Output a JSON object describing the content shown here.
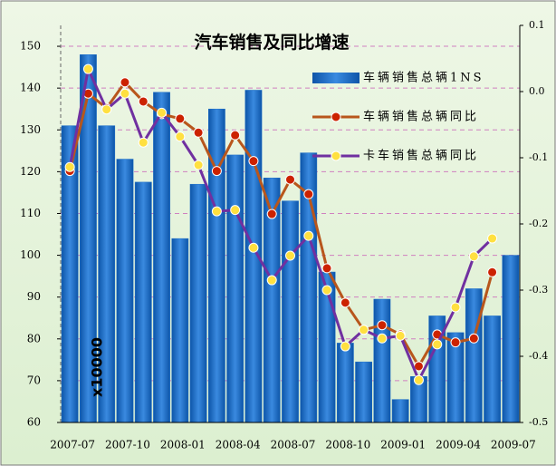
{
  "chart_data": {
    "type": "bar_line",
    "title": "汽车销售及同比增速",
    "annotation": "x10000",
    "categories": [
      "2007-07",
      null,
      null,
      "2007-10",
      null,
      null,
      "2008-01",
      null,
      null,
      "2008-04",
      null,
      null,
      "2008-07",
      null,
      null,
      "2008-10",
      null,
      null,
      "2009-01",
      null,
      null,
      "2009-04",
      null,
      null,
      "2009-07"
    ],
    "series": [
      {
        "name": "车辆销售总辆1NS",
        "color": "#1a6cc8",
        "kind": "bar",
        "values": [
          131,
          148,
          131,
          123,
          117.5,
          139,
          104,
          117,
          135,
          124,
          139.5,
          118.5,
          113,
          124.5,
          96,
          79,
          74.5,
          89.5,
          65.5,
          71,
          85.5,
          81.5,
          92,
          85.5,
          100
        ]
      },
      {
        "name": "车辆销售总辆同比",
        "color": "#b8561c",
        "marker": "#cc2200",
        "kind": "line",
        "axis": "y2",
        "values": [
          -0.12,
          -0.003,
          -0.025,
          0.014,
          -0.015,
          -0.034,
          -0.041,
          -0.062,
          -0.12,
          -0.066,
          -0.105,
          -0.185,
          -0.133,
          -0.155,
          -0.267,
          -0.319,
          -0.36,
          -0.353,
          -0.367,
          -0.415,
          -0.367,
          -0.379,
          -0.373,
          -0.273,
          null
        ]
      },
      {
        "name": "卡车销售总辆同比",
        "color": "#7030a0",
        "marker": "#ffe040",
        "kind": "line",
        "axis": "y2",
        "values": [
          -0.114,
          0.034,
          -0.027,
          -0.003,
          -0.077,
          -0.032,
          -0.068,
          -0.111,
          -0.181,
          -0.179,
          -0.236,
          -0.285,
          -0.248,
          -0.218,
          -0.3,
          -0.385,
          -0.36,
          -0.373,
          -0.369,
          -0.436,
          -0.382,
          -0.326,
          -0.249,
          -0.222,
          null
        ]
      }
    ],
    "ylim": [
      60,
      155
    ],
    "yticks": [
      60,
      70,
      80,
      90,
      100,
      110,
      120,
      130,
      140,
      150
    ],
    "y2lim": [
      -0.5,
      0.1
    ],
    "y2ticks": [
      0.1,
      {
        "value": 0,
        "label": "0.0"
      },
      -0.1,
      -0.2,
      -0.3,
      -0.4,
      -0.5
    ],
    "grid": true
  }
}
